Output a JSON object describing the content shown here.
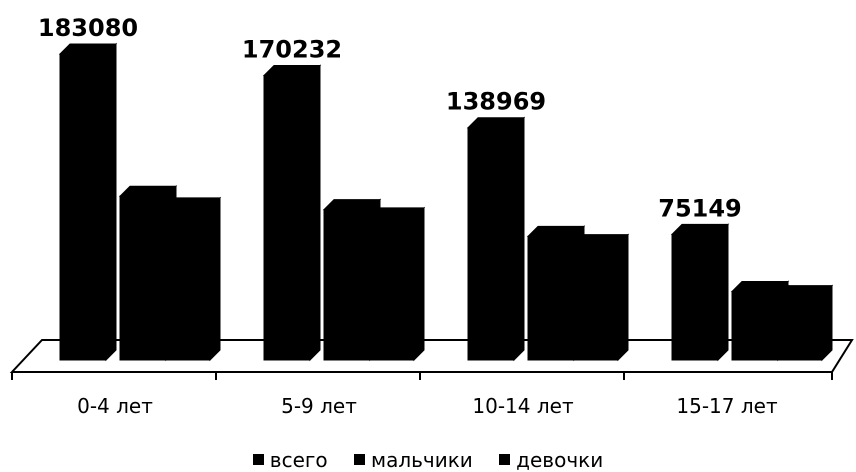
{
  "chart_data": {
    "type": "bar",
    "categories": [
      "0-4 лет",
      "5-9 лет",
      "10-14 лет",
      "15-17 лет"
    ],
    "series": [
      {
        "name": "всего",
        "values": [
          183080,
          170232,
          138969,
          75149
        ],
        "color": "#000000"
      },
      {
        "name": "мальчики",
        "values": [
          98000,
          90000,
          74000,
          41000
        ],
        "color": "#000000"
      },
      {
        "name": "девочки",
        "values": [
          91000,
          85000,
          69000,
          38500
        ],
        "color": "#000000"
      }
    ],
    "data_labels": [
      "183080",
      "170232",
      "138969",
      "75149"
    ],
    "title": "",
    "xlabel": "",
    "ylabel": "",
    "ylim": [
      0,
      183080
    ],
    "legend_position": "bottom",
    "grid": false,
    "style": "3d"
  }
}
